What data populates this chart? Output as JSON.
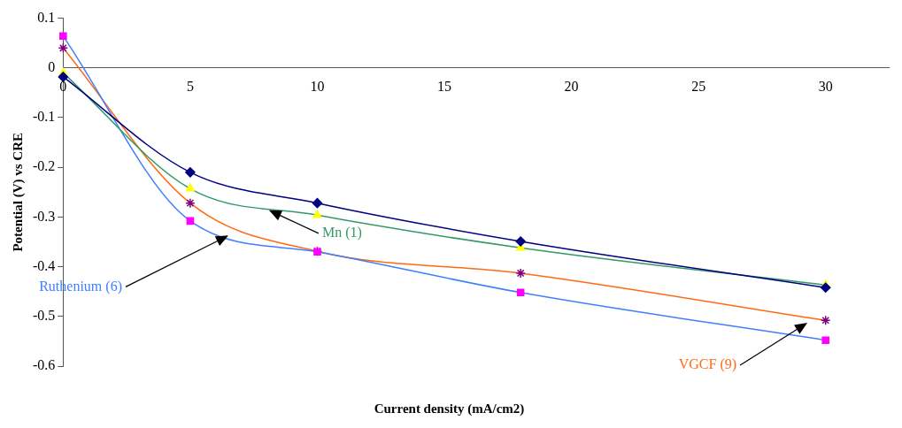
{
  "chart_data": {
    "type": "line",
    "xlabel": "Current density (mA/cm2)",
    "ylabel": "Potential (V) vs CRE",
    "x": [
      0,
      5,
      10,
      18,
      30
    ],
    "xlim": [
      0,
      32.5
    ],
    "xticks": [
      0,
      5,
      10,
      15,
      20,
      25,
      30
    ],
    "ylim": [
      -0.6,
      0.1
    ],
    "yticks": [
      -0.6,
      -0.5,
      -0.4,
      -0.3,
      -0.2,
      -0.1,
      0,
      0.1
    ],
    "grid": false,
    "legend": false,
    "series": [
      {
        "color": "#000080",
        "colors": [
          "#000080",
          "#000080",
          "#000080",
          "#000080",
          "#000080"
        ],
        "marker": "diamond",
        "values": [
          -0.018,
          -0.21,
          -0.272,
          -0.349,
          -0.442
        ]
      },
      {
        "name": "Mn (1)",
        "color": "#339966",
        "colors": [
          "#ffff00",
          "#ffff00",
          "#ffff00",
          "#ffff00",
          "#ffff00"
        ],
        "marker": "triangle",
        "values": [
          -0.01,
          -0.243,
          -0.296,
          -0.362,
          -0.437
        ]
      },
      {
        "name": "Ruthenium (6)",
        "color": "#3f7fff",
        "colors": [
          "#ff00ff",
          "#ff00ff",
          "#ff00ff",
          "#ff00ff",
          "#ff00ff"
        ],
        "marker": "square",
        "values": [
          0.064,
          -0.308,
          -0.37,
          -0.452,
          -0.548
        ]
      },
      {
        "name": "VGCF (9)",
        "color": "#ff6a13",
        "colors": [
          "#800080",
          "#800080",
          "#800080",
          "#800080",
          "#800080"
        ],
        "marker": "cross",
        "values": [
          0.04,
          -0.272,
          -0.369,
          -0.413,
          -0.508
        ]
      }
    ]
  }
}
